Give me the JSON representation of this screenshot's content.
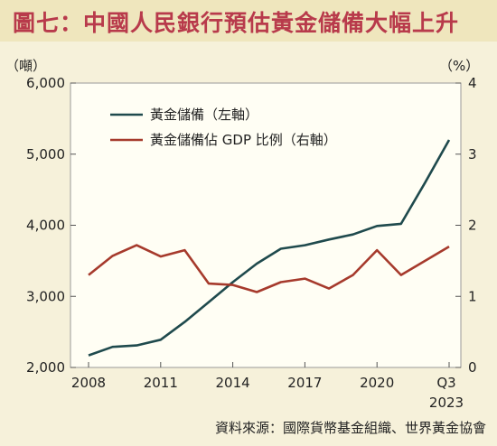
{
  "title": "圖七：中國人民銀行預估黃金儲備大幅上升",
  "source": "資料來源：國際貨幣基金組織、世界黃金協會",
  "colors": {
    "background": "#f6f1da",
    "title_bar": "#efe6bd",
    "title_text": "#b83a4b",
    "series_left": "#1f4a4d",
    "series_right": "#a63a2c"
  },
  "chart_data": {
    "type": "line",
    "x": [
      "2008",
      "2009",
      "2010",
      "2011",
      "2012",
      "2013",
      "2014",
      "2015",
      "2016",
      "2017",
      "2018",
      "2019",
      "2020",
      "2021",
      "2022",
      "Q3 2023"
    ],
    "x_tick_labels": [
      "2008",
      "2011",
      "2014",
      "2017",
      "2020",
      "Q3",
      "2023"
    ],
    "y_left_unit": "（噸）",
    "y_right_unit": "（%）",
    "y_left_ticks": [
      "2,000",
      "3,000",
      "4,000",
      "5,000",
      "6,000"
    ],
    "y_right_ticks": [
      "0",
      "1",
      "2",
      "3",
      "4"
    ],
    "ylim_left": [
      2000,
      6000
    ],
    "ylim_right": [
      0,
      4
    ],
    "series": [
      {
        "name": "黃金儲備（左軸）",
        "axis": "left",
        "values": [
          2170,
          2290,
          2310,
          2390,
          2640,
          2920,
          3200,
          3460,
          3670,
          3720,
          3800,
          3870,
          3990,
          4020,
          4600,
          5200
        ]
      },
      {
        "name": "黃金儲備佔 GDP 比例（右軸）",
        "axis": "right",
        "values": [
          1.3,
          1.57,
          1.72,
          1.56,
          1.65,
          1.18,
          1.16,
          1.06,
          1.2,
          1.25,
          1.11,
          1.3,
          1.65,
          1.3,
          1.5,
          1.7
        ]
      }
    ],
    "legend_position": "top-left",
    "grid": false
  }
}
